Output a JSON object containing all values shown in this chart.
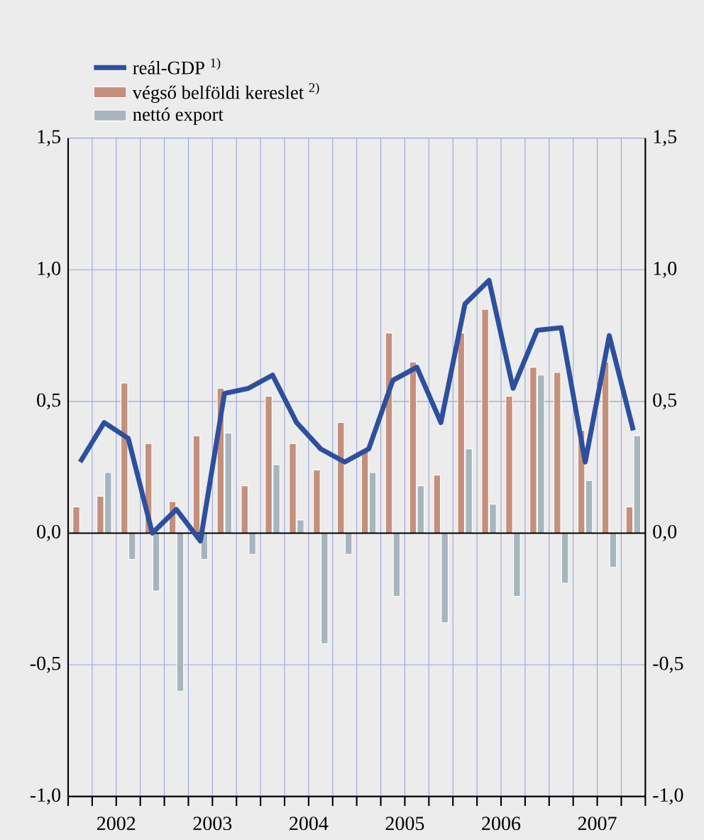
{
  "chart_data": {
    "type": "bar",
    "x": [
      2002.125,
      2002.375,
      2002.625,
      2002.875,
      2003.125,
      2003.375,
      2003.625,
      2003.875,
      2004.125,
      2004.375,
      2004.625,
      2004.875,
      2005.125,
      2005.375,
      2005.625,
      2005.875,
      2006.125,
      2006.375,
      2006.625,
      2006.875,
      2007.125,
      2007.375,
      2007.625,
      2007.875
    ],
    "series": [
      {
        "name": "reál-GDP $^{1)}$",
        "type": "line",
        "color": "#2e4f9e",
        "values": [
          0.27,
          0.42,
          0.36,
          0.0,
          0.09,
          -0.03,
          0.53,
          0.55,
          0.6,
          0.42,
          0.32,
          0.27,
          0.32,
          0.58,
          0.63,
          0.42,
          0.87,
          0.96,
          0.55,
          0.77,
          0.78,
          0.27,
          0.75,
          0.39
        ]
      },
      {
        "name": "végső belföldi kereslet $^{2)}$",
        "color": "#c4907c",
        "values": [
          0.1,
          0.14,
          0.57,
          0.34,
          0.12,
          0.37,
          0.55,
          0.18,
          0.52,
          0.34,
          0.24,
          0.42,
          0.31,
          0.76,
          0.65,
          0.22,
          0.76,
          0.85,
          0.52,
          0.63,
          0.61,
          0.39,
          0.65,
          0.1
        ]
      },
      {
        "name": "nettó export",
        "color": "#a7b5bf",
        "values": [
          null,
          0.23,
          -0.1,
          -0.22,
          -0.6,
          -0.1,
          0.38,
          -0.08,
          0.26,
          0.05,
          -0.42,
          -0.08,
          0.23,
          -0.24,
          0.18,
          -0.34,
          0.32,
          0.11,
          -0.24,
          0.6,
          -0.19,
          0.2,
          -0.13,
          0.37
        ]
      }
    ],
    "xlim": [
      2002,
      2008
    ],
    "xticks": [
      {
        "value": 2002,
        "label": null
      },
      {
        "value": 2002.25,
        "label": null
      },
      {
        "value": 2002.5,
        "label": "2002"
      },
      {
        "value": 2002.75,
        "label": null
      },
      {
        "value": 2003,
        "label": null
      },
      {
        "value": 2003.25,
        "label": null
      },
      {
        "value": 2003.5,
        "label": "2003"
      },
      {
        "value": 2003.75,
        "label": null
      },
      {
        "value": 2004,
        "label": null
      },
      {
        "value": 2004.25,
        "label": null
      },
      {
        "value": 2004.5,
        "label": "2004"
      },
      {
        "value": 2004.75,
        "label": null
      },
      {
        "value": 2005,
        "label": null
      },
      {
        "value": 2005.25,
        "label": null
      },
      {
        "value": 2005.5,
        "label": "2005"
      },
      {
        "value": 2005.75,
        "label": null
      },
      {
        "value": 2006,
        "label": null
      },
      {
        "value": 2006.25,
        "label": null
      },
      {
        "value": 2006.5,
        "label": "2006"
      },
      {
        "value": 2006.75,
        "label": null
      },
      {
        "value": 2007,
        "label": null
      },
      {
        "value": 2007.25,
        "label": null
      },
      {
        "value": 2007.5,
        "label": "2007"
      },
      {
        "value": 2007.75,
        "label": null
      },
      {
        "value": 2008,
        "label": null
      }
    ],
    "ylim": [
      -1.0,
      1.5
    ],
    "yticks": [
      {
        "value": -1.0,
        "label": "-1,0"
      },
      {
        "value": -0.5,
        "label": "-0,5"
      },
      {
        "value": 0.0,
        "label": "0,0"
      },
      {
        "value": 0.5,
        "label": "0,5"
      },
      {
        "value": 1.0,
        "label": "1,0"
      },
      {
        "value": 1.5,
        "label": "1,5"
      }
    ],
    "y2lim": [
      -1.0,
      1.5
    ],
    "y2ticks": [
      {
        "value": -1.0,
        "label": "-1,0"
      },
      {
        "value": -0.5,
        "label": "-0,5"
      },
      {
        "value": 0.0,
        "label": "0,0"
      },
      {
        "value": 0.5,
        "label": "0,5"
      },
      {
        "value": 1.0,
        "label": "1,0"
      },
      {
        "value": 1.5,
        "label": "1,5"
      }
    ],
    "ref_lines": [
      {
        "axis": "y",
        "value": 0.0,
        "color": "#000000"
      }
    ],
    "grid": true,
    "legend": "top left",
    "marker": "none",
    "line_style": "solid"
  }
}
